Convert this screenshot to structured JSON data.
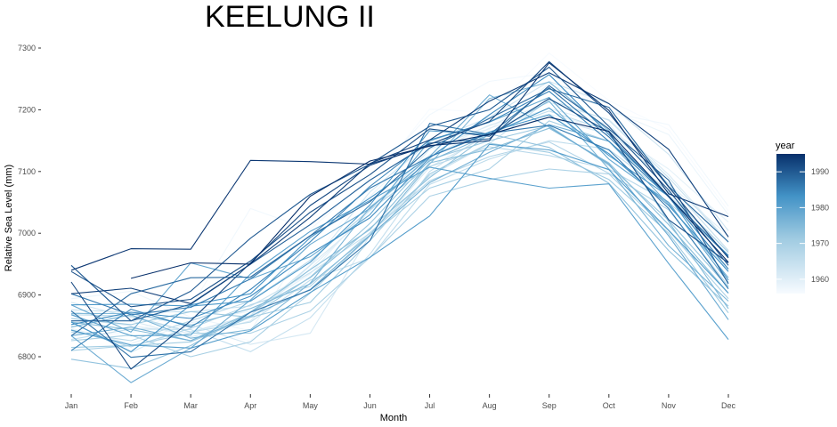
{
  "chart_data": {
    "type": "line",
    "title": "KEELUNG II",
    "xlabel": "Month",
    "ylabel": "Relative Sea Level (mm)",
    "categories": [
      "Jan",
      "Feb",
      "Mar",
      "Apr",
      "May",
      "Jun",
      "Jul",
      "Aug",
      "Sep",
      "Oct",
      "Nov",
      "Dec"
    ],
    "yticks": [
      6800,
      6900,
      7000,
      7100,
      7200,
      7300
    ],
    "ylim": [
      6745,
      7305
    ],
    "grid": false,
    "legend": {
      "title": "year",
      "type": "colorbar",
      "placement": "right",
      "range": [
        1956,
        1995
      ],
      "ticks": [
        1960,
        1970,
        1980,
        1990
      ],
      "color_low": "#f7fbff",
      "color_high": "#08306b"
    },
    "series": [
      {
        "year": 1956,
        "values": [
          6858,
          6872,
          6846,
          6826,
          6951,
          7080,
          7201,
          7196,
          7292,
          7215,
          7168,
          7036
        ]
      },
      {
        "year": 1957,
        "values": [
          6835,
          6838,
          6880,
          7040,
          7006,
          7090,
          7192,
          7246,
          7260,
          7196,
          7176,
          7044
        ]
      },
      {
        "year": 1958,
        "values": [
          6894,
          6906,
          6864,
          6842,
          6989,
          7060,
          7150,
          7168,
          7242,
          7200,
          7160,
          7030
        ]
      },
      {
        "year": 1959,
        "values": [
          6846,
          6821,
          6855,
          6874,
          6934,
          7043,
          7127,
          7176,
          7193,
          7168,
          7104,
          7018
        ]
      },
      {
        "year": 1960,
        "values": [
          6862,
          6850,
          6838,
          6866,
          6942,
          7036,
          7124,
          7170,
          7202,
          7176,
          7080,
          6996
        ]
      },
      {
        "year": 1961,
        "values": [
          6873,
          6858,
          6832,
          6858,
          6948,
          7031,
          7136,
          7174,
          7212,
          7184,
          7095,
          6986
        ]
      },
      {
        "year": 1962,
        "values": [
          6857,
          6807,
          6852,
          6820,
          6838,
          6997,
          7107,
          7160,
          7188,
          7160,
          7062,
          6970
        ]
      },
      {
        "year": 1963,
        "values": [
          6888,
          6864,
          6840,
          6867,
          6948,
          7067,
          7148,
          7188,
          7246,
          7210,
          7128,
          7004
        ]
      },
      {
        "year": 1964,
        "values": [
          6876,
          6872,
          6873,
          6882,
          6936,
          7000,
          7093,
          7145,
          7216,
          7183,
          7090,
          6985
        ]
      },
      {
        "year": 1965,
        "values": [
          6828,
          6845,
          6844,
          6808,
          6863,
          6966,
          7100,
          7164,
          7198,
          7166,
          7080,
          6972
        ]
      },
      {
        "year": 1966,
        "values": [
          6868,
          6866,
          6840,
          6856,
          6924,
          6960,
          7079,
          7120,
          7150,
          7136,
          7062,
          6938
        ]
      },
      {
        "year": 1967,
        "values": [
          6840,
          6826,
          6858,
          6890,
          6956,
          7038,
          7108,
          7140,
          7126,
          7104,
          7050,
          6964
        ]
      },
      {
        "year": 1968,
        "values": [
          6844,
          6816,
          6846,
          6884,
          6914,
          7001,
          7085,
          7124,
          7148,
          7097,
          7038,
          6914
        ]
      },
      {
        "year": 1969,
        "values": [
          6810,
          6818,
          6838,
          6838,
          6874,
          6961,
          7060,
          7087,
          7104,
          7096,
          7004,
          6894
        ]
      },
      {
        "year": 1970,
        "values": [
          6826,
          6835,
          6800,
          6824,
          6903,
          6996,
          7073,
          7104,
          7182,
          7149,
          7067,
          6969
        ]
      },
      {
        "year": 1971,
        "values": [
          6815,
          6818,
          6824,
          6864,
          6888,
          6988,
          7096,
          7146,
          7131,
          7087,
          7000,
          6871
        ]
      },
      {
        "year": 1972,
        "values": [
          6862,
          6852,
          6873,
          6864,
          6929,
          7016,
          7119,
          7150,
          7174,
          7110,
          7021,
          6912
        ]
      },
      {
        "year": 1973,
        "values": [
          6796,
          6781,
          6818,
          6872,
          6928,
          7008,
          7090,
          7161,
          7139,
          7081,
          6972,
          6882
        ]
      },
      {
        "year": 1974,
        "values": [
          6856,
          6844,
          6826,
          6872,
          6941,
          7006,
          7114,
          7136,
          7170,
          7114,
          7014,
          6903
        ]
      },
      {
        "year": 1975,
        "values": [
          6870,
          6870,
          6851,
          6878,
          6918,
          6997,
          7112,
          7218,
          7245,
          7166,
          7019,
          6878
        ]
      },
      {
        "year": 1976,
        "values": [
          6848,
          6868,
          6830,
          6844,
          6919,
          7042,
          7117,
          7160,
          7214,
          7104,
          6980,
          6890
        ]
      },
      {
        "year": 1977,
        "values": [
          6834,
          6848,
          6826,
          6866,
          6909,
          6996,
          7082,
          7131,
          7176,
          7149,
          7047,
          6928
        ]
      },
      {
        "year": 1978,
        "values": [
          6834,
          6758,
          6814,
          6892,
          6982,
          7040,
          7124,
          7224,
          7172,
          7112,
          6996,
          6860
        ]
      },
      {
        "year": 1979,
        "values": [
          6884,
          6840,
          6952,
          6926,
          6962,
          7030,
          7150,
          7180,
          7220,
          7120,
          7050,
          6920
        ]
      },
      {
        "year": 1980,
        "values": [
          6868,
          6834,
          6835,
          6934,
          7003,
          7053,
          7107,
          7089,
          7073,
          7080,
          6951,
          6828
        ]
      },
      {
        "year": 1981,
        "values": [
          6843,
          6819,
          6814,
          6842,
          6904,
          6961,
          7028,
          7144,
          7135,
          7103,
          7005,
          6903
        ]
      },
      {
        "year": 1982,
        "values": [
          6884,
          6885,
          6882,
          6890,
          6953,
          7046,
          7166,
          7160,
          7203,
          7126,
          7060,
          6924
        ]
      },
      {
        "year": 1983,
        "values": [
          6856,
          6808,
          6884,
          6902,
          6993,
          7057,
          7124,
          7164,
          7192,
          7129,
          7045,
          6938
        ]
      },
      {
        "year": 1984,
        "values": [
          6852,
          6872,
          6862,
          6898,
          6967,
          7025,
          7122,
          7192,
          7257,
          7160,
          7059,
          6964
        ]
      },
      {
        "year": 1985,
        "values": [
          6810,
          6877,
          6848,
          6909,
          6986,
          7076,
          7151,
          7180,
          7230,
          7149,
          7059,
          6942
        ]
      },
      {
        "year": 1986,
        "values": [
          6902,
          6868,
          6880,
          6926,
          6996,
          7073,
          7124,
          7162,
          7175,
          7135,
          7040,
          6910
        ]
      },
      {
        "year": 1987,
        "values": [
          6874,
          6799,
          6808,
          6872,
          6908,
          6988,
          7178,
          7160,
          7236,
          7156,
          7060,
          6962
        ]
      },
      {
        "year": 1988,
        "values": [
          6834,
          6902,
          6928,
          6929,
          6996,
          7051,
          7138,
          7186,
          7234,
          7204,
          7076,
          6986
        ]
      },
      {
        "year": 1989,
        "values": [
          6858,
          6858,
          6885,
          6950,
          7014,
          7086,
          7146,
          7153,
          7239,
          7169,
          7086,
          6918
        ]
      },
      {
        "year": 1990,
        "values": [
          6948,
          6858,
          6906,
          6992,
          7063,
          7112,
          7173,
          7200,
          7269,
          7173,
          7070,
          6948
        ]
      },
      {
        "year": 1991,
        "values": [
          6938,
          6881,
          6893,
          6955,
          7034,
          7095,
          7169,
          7157,
          7218,
          7164,
          7022,
          6952
        ]
      },
      {
        "year": 1992,
        "values": [
          6921,
          6780,
          6858,
          6952,
          7045,
          7110,
          7144,
          7181,
          7278,
          7195,
          7075,
          6960
        ]
      },
      {
        "year": 1993,
        "values": [
          6902,
          6911,
          6886,
          6950,
          7026,
          7113,
          7151,
          7214,
          7260,
          7210,
          7136,
          6994
        ]
      },
      {
        "year": 1994,
        "values": [
          6940,
          6975,
          6974,
          7118,
          7116,
          7112,
          7142,
          7150,
          7276,
          7199,
          7064,
          7027
        ]
      },
      {
        "year": 1995,
        "values": [
          null,
          6927,
          6952,
          6950,
          7060,
          7117,
          7141,
          7160,
          7188,
          7165,
          7060,
          6953
        ]
      }
    ]
  }
}
